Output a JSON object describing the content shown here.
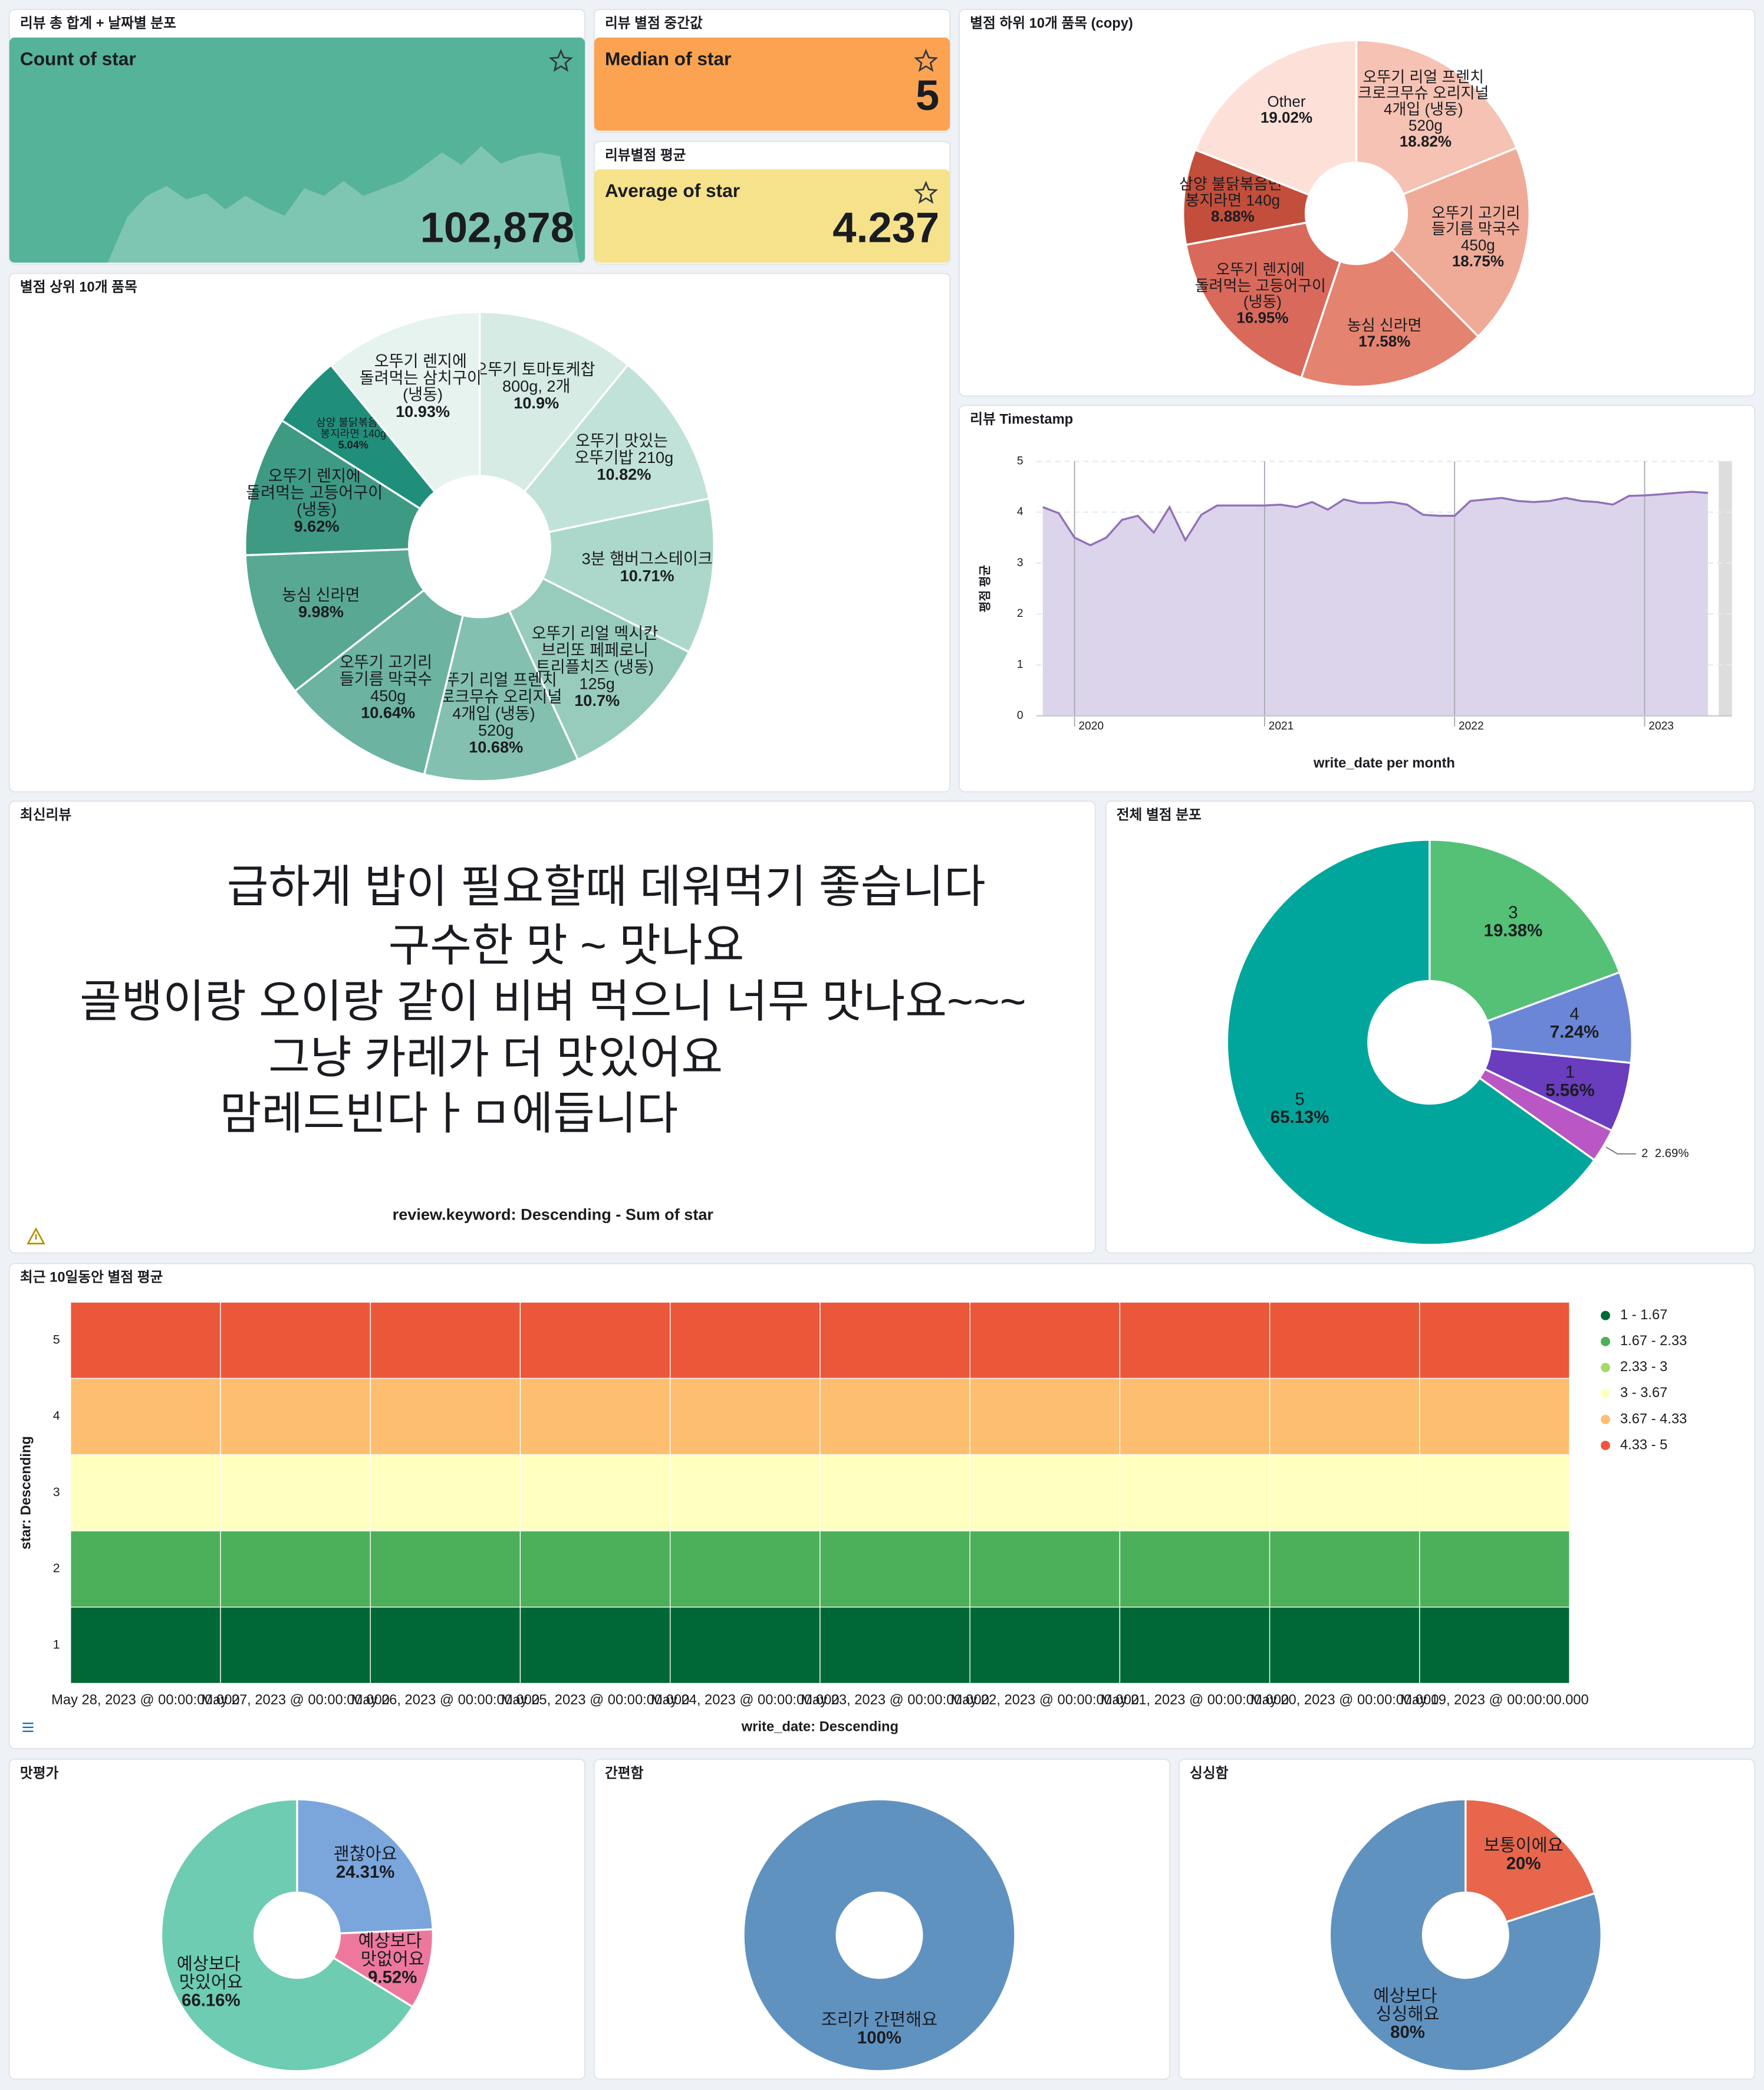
{
  "chart_data": [
    {
      "type": "metric",
      "panel_title": "리뷰 총 합계 + 날짜별 분포",
      "label": "Count of star",
      "value": 102878,
      "value_label": "102,878",
      "color": "#54b399",
      "trend": [
        0,
        0,
        0,
        0,
        0,
        0,
        37,
        54,
        62,
        51,
        56,
        43,
        54,
        45,
        38,
        60,
        54,
        66,
        54,
        60,
        66,
        77,
        89,
        79,
        94,
        80,
        86,
        89,
        86,
        0
      ],
      "trend_ylim": [
        0,
        100
      ]
    },
    {
      "type": "metric",
      "panel_title": "리뷰 별점 중간값",
      "label": "Median of star",
      "value": 5,
      "color": "#fca352"
    },
    {
      "type": "metric",
      "panel_title": "리뷰별점 평균",
      "label": "Average of star",
      "value": 4.237,
      "color": "#f6e28b"
    },
    {
      "type": "pie",
      "panel_title": "별점 하위 10개 품목 (copy)",
      "categories": [
        "오뚜기 리얼 프렌치 크로크무슈 오리지널 4개입 (냉동) 520g",
        "오뚜기 고기리 들기름 막국수 450g",
        "농심 신라면",
        "오뚜기 렌지에 돌려먹는 고등어구이 (냉동)",
        "삼양 불닭볶음면 봉지라면 140g",
        "Other"
      ],
      "values": [
        18.82,
        18.75,
        17.58,
        16.95,
        8.88,
        19.02
      ],
      "value_labels": [
        "18.82%",
        "18.75%",
        "17.58%",
        "16.95%",
        "8.88%",
        "19.02%"
      ],
      "colors": [
        "#f5c2b3",
        "#efab98",
        "#e4836f",
        "#d9695a",
        "#c24e3b",
        "#fde1d9"
      ]
    },
    {
      "type": "pie",
      "panel_title": "별점 상위 10개 품목",
      "categories": [
        "오뚜기 토마토케찹 800g, 2개",
        "오뚜기 맛있는 오뚜기밥 210g",
        "3분 햄버그스테이크",
        "오뚜기 리얼 멕시칸 브리또 페페로니 트리플치즈 (냉동) 125g",
        "오뚜기 리얼 프렌치 크로크무슈 오리지널 4개입 (냉동) 520g",
        "오뚜기 고기리 들기름 막국수 450g",
        "농심 신라면",
        "오뚜기 렌지에 돌려먹는 고등어구이 (냉동)",
        "삼양 불닭볶음면 봉지라면 140g",
        "오뚜기 렌지에 돌려먹는 삼치구이 (냉동)"
      ],
      "values": [
        10.9,
        10.82,
        10.71,
        10.7,
        10.68,
        10.64,
        9.98,
        9.62,
        5.04,
        10.93
      ],
      "value_labels": [
        "10.9%",
        "10.82%",
        "10.71%",
        "10.7%",
        "10.68%",
        "10.64%",
        "9.98%",
        "9.62%",
        "5.04%",
        "10.93%"
      ],
      "colors": [
        "#d5ebe4",
        "#c1e2d8",
        "#abd8ca",
        "#97ccbd",
        "#83c0b0",
        "#6cb3a1",
        "#59a894",
        "#3f9a84",
        "#1f8f7c",
        "#e7f3ef"
      ]
    },
    {
      "type": "line",
      "panel_title": "리뷰 Timestamp",
      "x_title": "write_date per month",
      "y_title": "평점 평균",
      "x": [
        2019.833,
        2019.917,
        2020,
        2020.083,
        2020.167,
        2020.25,
        2020.333,
        2020.417,
        2020.5,
        2020.583,
        2020.667,
        2020.75,
        2020.833,
        2020.917,
        2021,
        2021.083,
        2021.167,
        2021.25,
        2021.333,
        2021.417,
        2021.5,
        2021.583,
        2021.667,
        2021.75,
        2021.833,
        2021.917,
        2022,
        2022.083,
        2022.167,
        2022.25,
        2022.333,
        2022.417,
        2022.5,
        2022.583,
        2022.667,
        2022.75,
        2022.833,
        2022.917,
        2023,
        2023.083,
        2023.167,
        2023.25,
        2023.333
      ],
      "series": [
        {
          "color": "#9170b8",
          "values": [
            4.1,
            3.98,
            3.5,
            3.35,
            3.5,
            3.85,
            3.93,
            3.6,
            4.1,
            3.45,
            3.95,
            4.13,
            4.13,
            4.13,
            4.13,
            4.15,
            4.1,
            4.2,
            4.05,
            4.25,
            4.18,
            4.18,
            4.2,
            4.15,
            3.95,
            3.93,
            3.93,
            4.22,
            4.25,
            4.28,
            4.22,
            4.2,
            4.22,
            4.28,
            4.22,
            4.2,
            4.15,
            4.32,
            4.33,
            4.35,
            4.38,
            4.4,
            4.38
          ]
        }
      ],
      "area_color": "#dcd4ea",
      "xlim": [
        2019.8,
        2023.46
      ],
      "xticks": [
        2020,
        2021,
        2022,
        2023
      ],
      "ylim": [
        0,
        5
      ],
      "yticks": [
        0,
        1,
        2,
        3,
        4,
        5
      ],
      "grid": true
    },
    {
      "type": "wordcloud",
      "panel_title": "최신리뷰",
      "caption": "review.keyword: Descending - Sum of star",
      "words": [
        {
          "text": "급하게 밥이 필요할때 데워먹기 좋습니다",
          "color": "#a75a48"
        },
        {
          "text": "구수한 맛 ~ 맛나요",
          "color": "#d38cb0"
        },
        {
          "text": "골뱅이랑 오이랑 같이 비벼 먹으니 너무 맛나요~~~",
          "color": "#9162b5"
        },
        {
          "text": "그냥 카레가 더 맛있어요",
          "color": "#b0976d"
        },
        {
          "text": "맘레드빈다ㅏㅁ에듭니다",
          "color": "#d8d0b4"
        }
      ]
    },
    {
      "type": "pie",
      "panel_title": "전체 별점 분포",
      "categories": [
        "3",
        "4",
        "1",
        "2",
        "5"
      ],
      "values": [
        19.38,
        7.24,
        5.56,
        2.69,
        65.13
      ],
      "value_labels": [
        "19.38%",
        "7.24%",
        "5.56%",
        "2.69%",
        "65.13%"
      ],
      "colors": [
        "#54c176",
        "#6b86d6",
        "#6a3cbe",
        "#b957c5",
        "#00a69b"
      ]
    },
    {
      "type": "heatmap",
      "panel_title": "최근 10일동안 별점 평균",
      "x_title": "write_date: Descending",
      "y_title": "star: Descending",
      "categories": [
        "May 28, 2023 @ 00:00:00.000",
        "May 27, 2023 @ 00:00:00.000",
        "May 26, 2023 @ 00:00:00.000",
        "May 25, 2023 @ 00:00:00.000",
        "May 24, 2023 @ 00:00:00.000",
        "May 23, 2023 @ 00:00:00.000",
        "May 22, 2023 @ 00:00:00.000",
        "May 21, 2023 @ 00:00:00.000",
        "May 20, 2023 @ 00:00:00.000",
        "May 19, 2023 @ 00:00:00.000"
      ],
      "rows": [
        5,
        4,
        3,
        2,
        1
      ],
      "values": [
        [
          5,
          5,
          5,
          5,
          5,
          5,
          5,
          5,
          5,
          5
        ],
        [
          4,
          4,
          4,
          4,
          4,
          4,
          4,
          4,
          4,
          4
        ],
        [
          3,
          3,
          3,
          3,
          3,
          3,
          3,
          3,
          3,
          3
        ],
        [
          2,
          2,
          2,
          2,
          2,
          2,
          2,
          2,
          2,
          2
        ],
        [
          1,
          1,
          1,
          1,
          1,
          1,
          1,
          1,
          1,
          1
        ]
      ],
      "legend": [
        {
          "label": "1 - 1.67",
          "color": "#006837"
        },
        {
          "label": "1.67 - 2.33",
          "color": "#4cb05a"
        },
        {
          "label": "2.33 - 3",
          "color": "#a6d96a"
        },
        {
          "label": "3 - 3.67",
          "color": "#ffffbf"
        },
        {
          "label": "3.67 - 4.33",
          "color": "#fdbf6f"
        },
        {
          "label": "4.33 - 5",
          "color": "#eb5739"
        }
      ]
    },
    {
      "type": "pie",
      "panel_title": "맛평가",
      "categories": [
        "괜찮아요",
        "예상보다 맛없어요",
        "예상보다 맛있어요"
      ],
      "values": [
        24.31,
        9.52,
        66.16
      ],
      "value_labels": [
        "24.31%",
        "9.52%",
        "66.16%"
      ],
      "colors": [
        "#7aa6dc",
        "#ee789d",
        "#6dccb1"
      ]
    },
    {
      "type": "pie",
      "panel_title": "간편함",
      "categories": [
        "조리가 간편해요"
      ],
      "values": [
        100
      ],
      "value_labels": [
        "100%"
      ],
      "colors": [
        "#6092c0"
      ]
    },
    {
      "type": "pie",
      "panel_title": "싱싱함",
      "categories": [
        "보통이에요",
        "예상보다 싱싱해요"
      ],
      "values": [
        20,
        80
      ],
      "value_labels": [
        "20%",
        "80%"
      ],
      "colors": [
        "#e7664c",
        "#6092c0"
      ]
    }
  ]
}
